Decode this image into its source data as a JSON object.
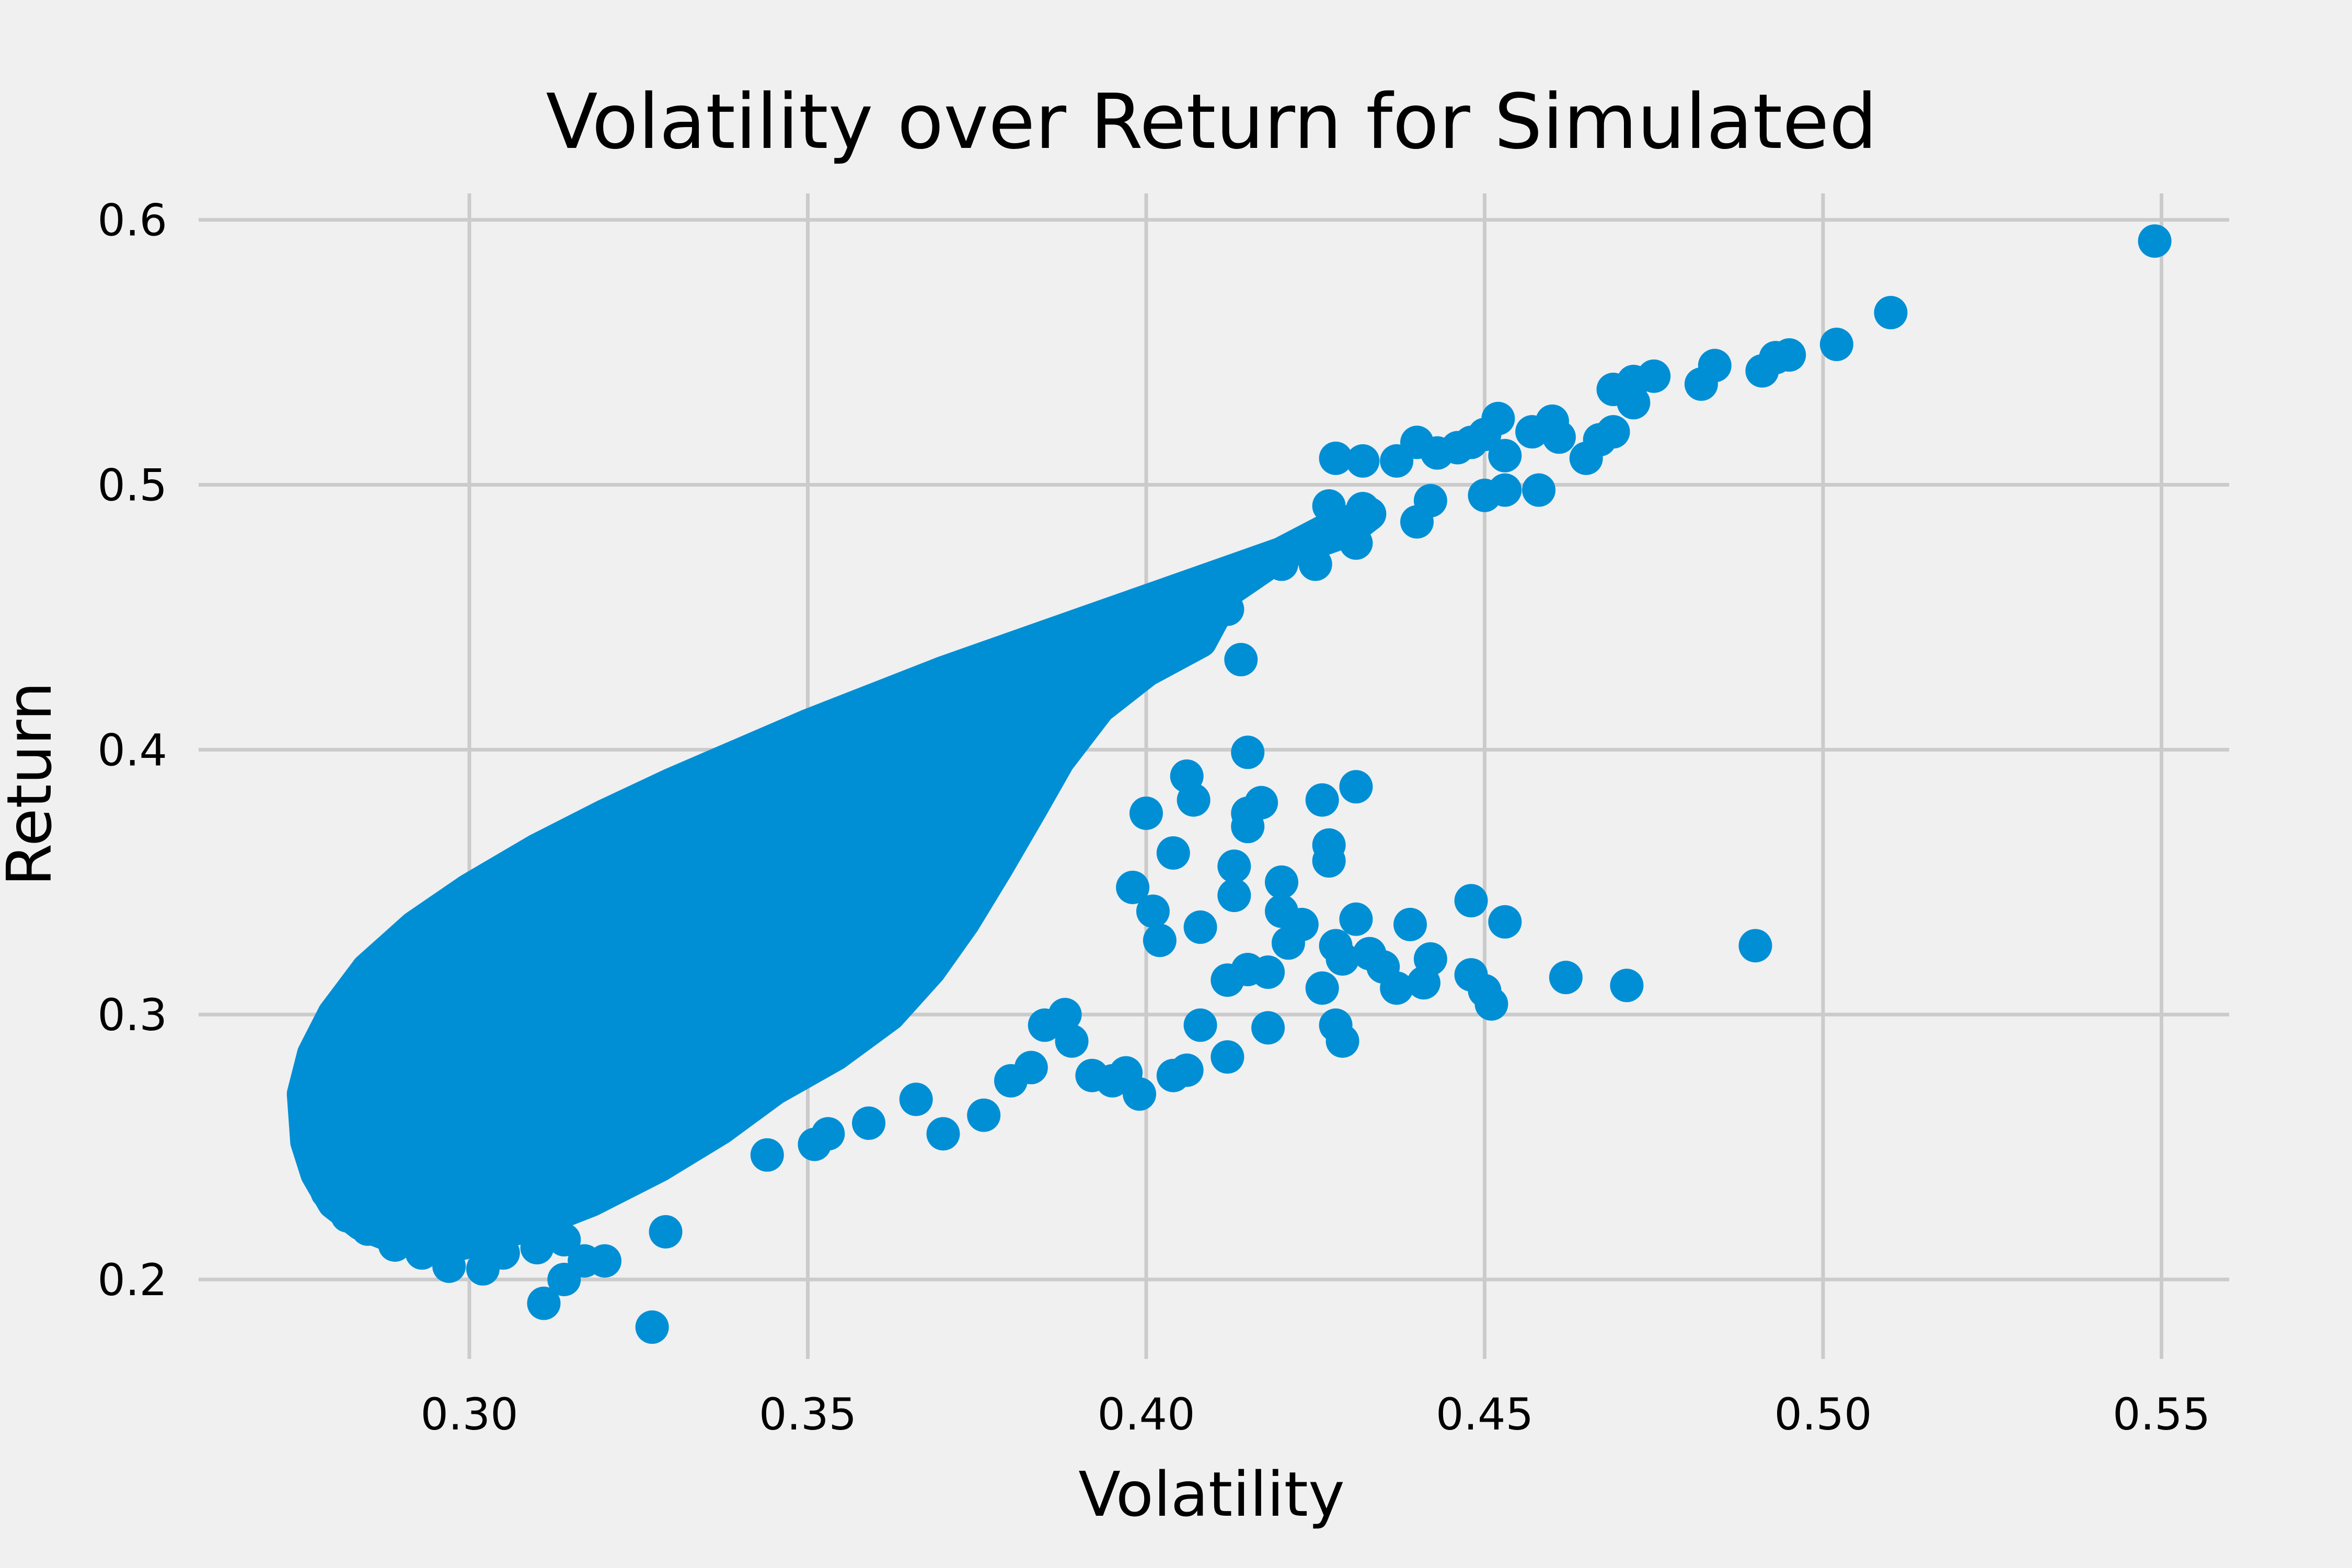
{
  "chart_data": {
    "type": "scatter",
    "title": "Volatility over Return for Simulated",
    "xlabel": "Volatility",
    "ylabel": "Return",
    "xlim": [
      0.26,
      0.56
    ],
    "ylim": [
      0.17,
      0.61
    ],
    "xticks": [
      0.3,
      0.35,
      0.4,
      0.45,
      0.5,
      0.55
    ],
    "xtick_labels": [
      "0.30",
      "0.35",
      "0.40",
      "0.45",
      "0.50",
      "0.55"
    ],
    "yticks": [
      0.2,
      0.3,
      0.4,
      0.5,
      0.6
    ],
    "ytick_labels": [
      "0.2",
      "0.3",
      "0.4",
      "0.5",
      "0.6"
    ],
    "grid": true,
    "color": "#008fd5",
    "background": "#f0f0f0",
    "grid_color": "#cbcbcb",
    "series": [
      {
        "points": [
          [
            0.549,
            0.592
          ],
          [
            0.51,
            0.565
          ],
          [
            0.502,
            0.553
          ],
          [
            0.495,
            0.549
          ],
          [
            0.493,
            0.548
          ],
          [
            0.491,
            0.543
          ],
          [
            0.484,
            0.545
          ],
          [
            0.482,
            0.538
          ],
          [
            0.475,
            0.541
          ],
          [
            0.472,
            0.539
          ],
          [
            0.469,
            0.536
          ],
          [
            0.472,
            0.531
          ],
          [
            0.469,
            0.52
          ],
          [
            0.467,
            0.517
          ],
          [
            0.465,
            0.51
          ],
          [
            0.46,
            0.524
          ],
          [
            0.461,
            0.518
          ],
          [
            0.457,
            0.52
          ],
          [
            0.452,
            0.525
          ],
          [
            0.45,
            0.519
          ],
          [
            0.448,
            0.516
          ],
          [
            0.446,
            0.514
          ],
          [
            0.453,
            0.511
          ],
          [
            0.458,
            0.498
          ],
          [
            0.453,
            0.498
          ],
          [
            0.45,
            0.496
          ],
          [
            0.443,
            0.512
          ],
          [
            0.44,
            0.516
          ],
          [
            0.437,
            0.509
          ],
          [
            0.442,
            0.494
          ],
          [
            0.44,
            0.486
          ],
          [
            0.432,
            0.509
          ],
          [
            0.428,
            0.51
          ],
          [
            0.432,
            0.491
          ],
          [
            0.427,
            0.492
          ],
          [
            0.431,
            0.478
          ],
          [
            0.425,
            0.47
          ],
          [
            0.49,
            0.326
          ],
          [
            0.471,
            0.311
          ],
          [
            0.462,
            0.314
          ],
          [
            0.453,
            0.335
          ],
          [
            0.448,
            0.343
          ],
          [
            0.451,
            0.304
          ],
          [
            0.45,
            0.309
          ],
          [
            0.448,
            0.315
          ],
          [
            0.442,
            0.321
          ],
          [
            0.441,
            0.312
          ],
          [
            0.439,
            0.334
          ],
          [
            0.437,
            0.31
          ],
          [
            0.435,
            0.318
          ],
          [
            0.433,
            0.323
          ],
          [
            0.431,
            0.336
          ],
          [
            0.431,
            0.386
          ],
          [
            0.429,
            0.321
          ],
          [
            0.428,
            0.326
          ],
          [
            0.427,
            0.364
          ],
          [
            0.427,
            0.358
          ],
          [
            0.429,
            0.29
          ],
          [
            0.428,
            0.296
          ],
          [
            0.426,
            0.31
          ],
          [
            0.426,
            0.381
          ],
          [
            0.423,
            0.334
          ],
          [
            0.421,
            0.327
          ],
          [
            0.42,
            0.339
          ],
          [
            0.42,
            0.35
          ],
          [
            0.418,
            0.316
          ],
          [
            0.418,
            0.295
          ],
          [
            0.417,
            0.38
          ],
          [
            0.415,
            0.371
          ],
          [
            0.415,
            0.376
          ],
          [
            0.415,
            0.399
          ],
          [
            0.415,
            0.317
          ],
          [
            0.413,
            0.345
          ],
          [
            0.413,
            0.356
          ],
          [
            0.412,
            0.313
          ],
          [
            0.412,
            0.284
          ],
          [
            0.414,
            0.434
          ],
          [
            0.412,
            0.453
          ],
          [
            0.408,
            0.333
          ],
          [
            0.408,
            0.296
          ],
          [
            0.406,
            0.279
          ],
          [
            0.404,
            0.277
          ],
          [
            0.407,
            0.381
          ],
          [
            0.406,
            0.39
          ],
          [
            0.404,
            0.361
          ],
          [
            0.402,
            0.328
          ],
          [
            0.401,
            0.339
          ],
          [
            0.4,
            0.376
          ],
          [
            0.398,
            0.348
          ],
          [
            0.399,
            0.27
          ],
          [
            0.397,
            0.278
          ],
          [
            0.395,
            0.275
          ],
          [
            0.392,
            0.277
          ],
          [
            0.389,
            0.29
          ],
          [
            0.388,
            0.3
          ],
          [
            0.385,
            0.296
          ],
          [
            0.383,
            0.28
          ],
          [
            0.38,
            0.275
          ],
          [
            0.376,
            0.262
          ],
          [
            0.37,
            0.255
          ],
          [
            0.366,
            0.268
          ],
          [
            0.359,
            0.259
          ],
          [
            0.353,
            0.255
          ],
          [
            0.351,
            0.251
          ],
          [
            0.344,
            0.247
          ],
          [
            0.327,
            0.182
          ],
          [
            0.329,
            0.218
          ],
          [
            0.311,
            0.191
          ],
          [
            0.314,
            0.2
          ],
          [
            0.317,
            0.207
          ],
          [
            0.32,
            0.207
          ],
          [
            0.314,
            0.215
          ],
          [
            0.31,
            0.212
          ],
          [
            0.305,
            0.21
          ],
          [
            0.302,
            0.204
          ],
          [
            0.297,
            0.205
          ],
          [
            0.293,
            0.21
          ],
          [
            0.289,
            0.213
          ],
          [
            0.285,
            0.219
          ],
          [
            0.282,
            0.224
          ],
          [
            0.279,
            0.233
          ],
          [
            0.278,
            0.242
          ],
          [
            0.277,
            0.252
          ],
          [
            0.276,
            0.262
          ],
          [
            0.276,
            0.272
          ],
          [
            0.277,
            0.282
          ],
          [
            0.279,
            0.292
          ],
          [
            0.281,
            0.301
          ],
          [
            0.284,
            0.31
          ],
          [
            0.288,
            0.32
          ],
          [
            0.293,
            0.33
          ],
          [
            0.298,
            0.34
          ],
          [
            0.304,
            0.35
          ],
          [
            0.311,
            0.36
          ],
          [
            0.318,
            0.37
          ],
          [
            0.326,
            0.38
          ],
          [
            0.335,
            0.39
          ],
          [
            0.344,
            0.4
          ],
          [
            0.353,
            0.41
          ],
          [
            0.363,
            0.42
          ],
          [
            0.374,
            0.43
          ],
          [
            0.385,
            0.44
          ],
          [
            0.396,
            0.45
          ],
          [
            0.408,
            0.46
          ],
          [
            0.42,
            0.47
          ]
        ],
        "dense_region": {
          "outline": [
            [
              0.2755,
              0.27
            ],
            [
              0.277,
              0.285
            ],
            [
              0.28,
              0.3
            ],
            [
              0.285,
              0.317
            ],
            [
              0.292,
              0.333
            ],
            [
              0.3,
              0.347
            ],
            [
              0.31,
              0.362
            ],
            [
              0.32,
              0.375
            ],
            [
              0.33,
              0.387
            ],
            [
              0.34,
              0.398
            ],
            [
              0.35,
              0.409
            ],
            [
              0.36,
              0.419
            ],
            [
              0.37,
              0.429
            ],
            [
              0.38,
              0.438
            ],
            [
              0.39,
              0.447
            ],
            [
              0.4,
              0.456
            ],
            [
              0.41,
              0.465
            ],
            [
              0.42,
              0.474
            ],
            [
              0.43,
              0.483
            ],
            [
              0.433,
              0.489
            ],
            [
              0.426,
              0.482
            ],
            [
              0.42,
              0.474
            ],
            [
              0.412,
              0.46
            ],
            [
              0.408,
              0.441
            ],
            [
              0.4,
              0.43
            ],
            [
              0.393,
              0.416
            ],
            [
              0.387,
              0.396
            ],
            [
              0.383,
              0.378
            ],
            [
              0.378,
              0.356
            ],
            [
              0.373,
              0.335
            ],
            [
              0.368,
              0.317
            ],
            [
              0.362,
              0.3
            ],
            [
              0.354,
              0.285
            ],
            [
              0.345,
              0.272
            ],
            [
              0.337,
              0.257
            ],
            [
              0.328,
              0.243
            ],
            [
              0.318,
              0.23
            ],
            [
              0.308,
              0.22
            ],
            [
              0.298,
              0.213
            ],
            [
              0.29,
              0.215
            ],
            [
              0.284,
              0.221
            ],
            [
              0.28,
              0.229
            ],
            [
              0.2775,
              0.24
            ],
            [
              0.276,
              0.252
            ]
          ]
        }
      }
    ]
  }
}
